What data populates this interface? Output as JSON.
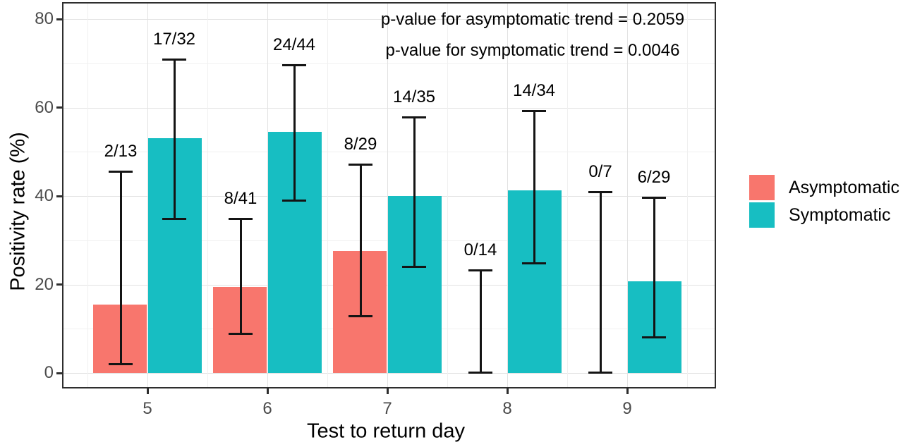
{
  "figure": {
    "background": "#ffffff",
    "panel_border_color": "#2e2e2e"
  },
  "annotations": {
    "line1": "p-value for asymptomatic trend = 0.2059",
    "line2": "p-value for symptomatic trend = 0.0046"
  },
  "chart_data": {
    "type": "bar",
    "title": "",
    "xlabel": "Test to return day",
    "ylabel": "Positivity rate (%)",
    "categories": [
      "5",
      "6",
      "7",
      "8",
      "9"
    ],
    "y_axis": {
      "min": 0,
      "max": 80,
      "major_ticks": [
        0,
        20,
        40,
        60,
        80
      ],
      "minor_ticks": [
        10,
        30,
        50,
        70
      ]
    },
    "grid": "major+minor horizontal and vertical, light gray on white",
    "legend_position": "right",
    "error_bars": "95% binomial confidence intervals",
    "series": [
      {
        "name": "Asymptomatic",
        "color": "#F8766D",
        "values": [
          15.4,
          19.5,
          27.6,
          0,
          0
        ],
        "fractions": [
          "2/13",
          "8/41",
          "8/29",
          "0/14",
          "0/7"
        ],
        "ci_low": [
          1.9,
          8.8,
          12.7,
          0,
          0
        ],
        "ci_high": [
          45.5,
          34.9,
          47.2,
          23.2,
          41.0
        ]
      },
      {
        "name": "Symptomatic",
        "color": "#17BEC2",
        "values": [
          53.1,
          54.5,
          40.0,
          41.2,
          20.7
        ],
        "fractions": [
          "17/32",
          "24/44",
          "14/35",
          "14/34",
          "6/29"
        ],
        "ci_low": [
          34.7,
          38.9,
          23.9,
          24.7,
          8.0
        ],
        "ci_high": [
          70.9,
          69.6,
          57.9,
          59.3,
          39.7
        ]
      }
    ],
    "p_values": {
      "asymptomatic_trend": "0.2059",
      "symptomatic_trend": "0.0046"
    }
  },
  "legend": {
    "items": [
      {
        "label": "Asymptomatic",
        "color": "#F8766D"
      },
      {
        "label": "Symptomatic",
        "color": "#17BEC2"
      }
    ]
  }
}
